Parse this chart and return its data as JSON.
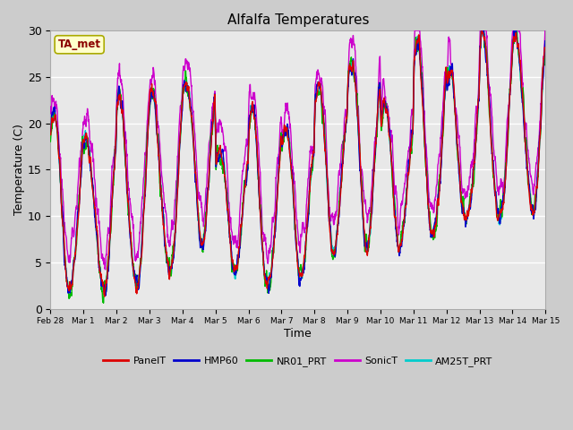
{
  "title": "Alfalfa Temperatures",
  "xlabel": "Time",
  "ylabel": "Temperature (C)",
  "ylim": [
    0,
    30
  ],
  "annotation": "TA_met",
  "fig_facecolor": "#cccccc",
  "ax_facecolor": "#e8e8e8",
  "series": {
    "PanelT": {
      "color": "#dd0000",
      "lw": 1.0
    },
    "HMP60": {
      "color": "#0000cc",
      "lw": 1.0
    },
    "NR01_PRT": {
      "color": "#00bb00",
      "lw": 1.0
    },
    "SonicT": {
      "color": "#cc00cc",
      "lw": 1.0
    },
    "AM25T_PRT": {
      "color": "#00cccc",
      "lw": 1.0
    }
  },
  "xtick_labels": [
    "Feb 28",
    "Mar 1",
    "Mar 2",
    "Mar 3",
    "Mar 4",
    "Mar 5",
    "Mar 6",
    "Mar 7",
    "Mar 8",
    "Mar 9",
    "Mar 10",
    "Mar 11",
    "Mar 12",
    "Mar 13",
    "Mar 14",
    "Mar 15"
  ],
  "n_days": 15,
  "pts_per_day": 144,
  "seed": 12345
}
